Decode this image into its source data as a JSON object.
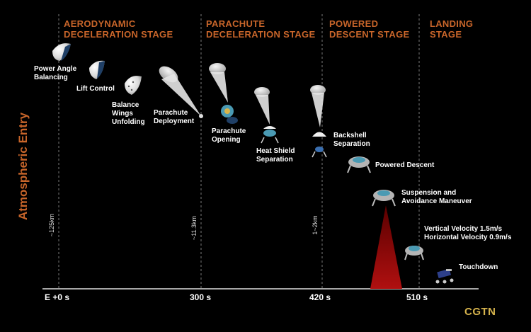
{
  "vertical_title": "Atmospheric Entry",
  "stages": [
    {
      "title": "AERODYNAMIC\nDECELERATION STAGE"
    },
    {
      "title": "PARACHUTE\nDECELERATION STAGE"
    },
    {
      "title": "POWERED\nDESCENT STAGE"
    },
    {
      "title": "LANDING\nSTAGE"
    }
  ],
  "steps": [
    "Power Angle\nBalancing",
    "Lift Control",
    "Balance\nWings\nUnfolding",
    "Parachute\nDeployment",
    "Parachute\nOpening",
    "Heat Shield\nSeparation",
    "Backshell\nSeparation",
    "Powered Descent",
    "Suspension and\nAvoidance Maneuver",
    "Vertical Velocity 1.5m/s\nHorizontal Velocity 0.9m/s",
    "Touchdown"
  ],
  "altitudes": [
    "~125km",
    "~11.3km",
    "1~2km"
  ],
  "time_ticks": [
    "E +0 s",
    "300 s",
    "420 s",
    "510 s"
  ],
  "brand": "CGTN",
  "colors": {
    "accent": "#c8652a",
    "brand": "#d4b24c",
    "divider": "#777777",
    "plume": "#8b0a0a"
  }
}
